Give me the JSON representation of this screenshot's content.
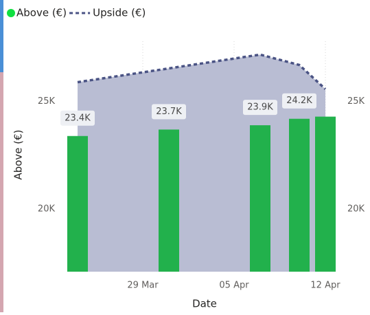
{
  "chart_data": {
    "type": "combo",
    "x": [
      "24 Mar",
      "31 Mar",
      "07 Apr",
      "10 Apr",
      "12 Apr"
    ],
    "xlim": [
      "23 Mar",
      "13 Apr"
    ],
    "xticks": [
      "29 Mar",
      "05 Apr",
      "12 Apr"
    ],
    "x_label": "Date",
    "y_label": "Above (€)",
    "ylim": [
      17100,
      27800
    ],
    "yticks": [
      {
        "value": 20000,
        "label": "20K"
      },
      {
        "value": 25000,
        "label": "25K"
      }
    ],
    "y2lim": [
      17100,
      27800
    ],
    "y2ticks": [
      {
        "value": 20000,
        "label": "20K"
      },
      {
        "value": 25000,
        "label": "25K"
      }
    ],
    "grid": true,
    "legend": "top-left",
    "series": [
      {
        "name": "Above (€)",
        "kind": "bar",
        "color": "#22b14c",
        "legend_color": "#10e040",
        "values": [
          23400,
          23700,
          23900,
          24200,
          24300
        ],
        "value_labels": [
          "23.4K",
          "23.7K",
          "23.9K",
          "24.2K",
          null
        ]
      },
      {
        "name": "Upside (€)",
        "kind": "area",
        "axis": "y2",
        "color": "#4a5384",
        "fill": "#b9bdd3",
        "values": [
          25900,
          26540,
          27180,
          26700,
          25580
        ]
      }
    ]
  }
}
